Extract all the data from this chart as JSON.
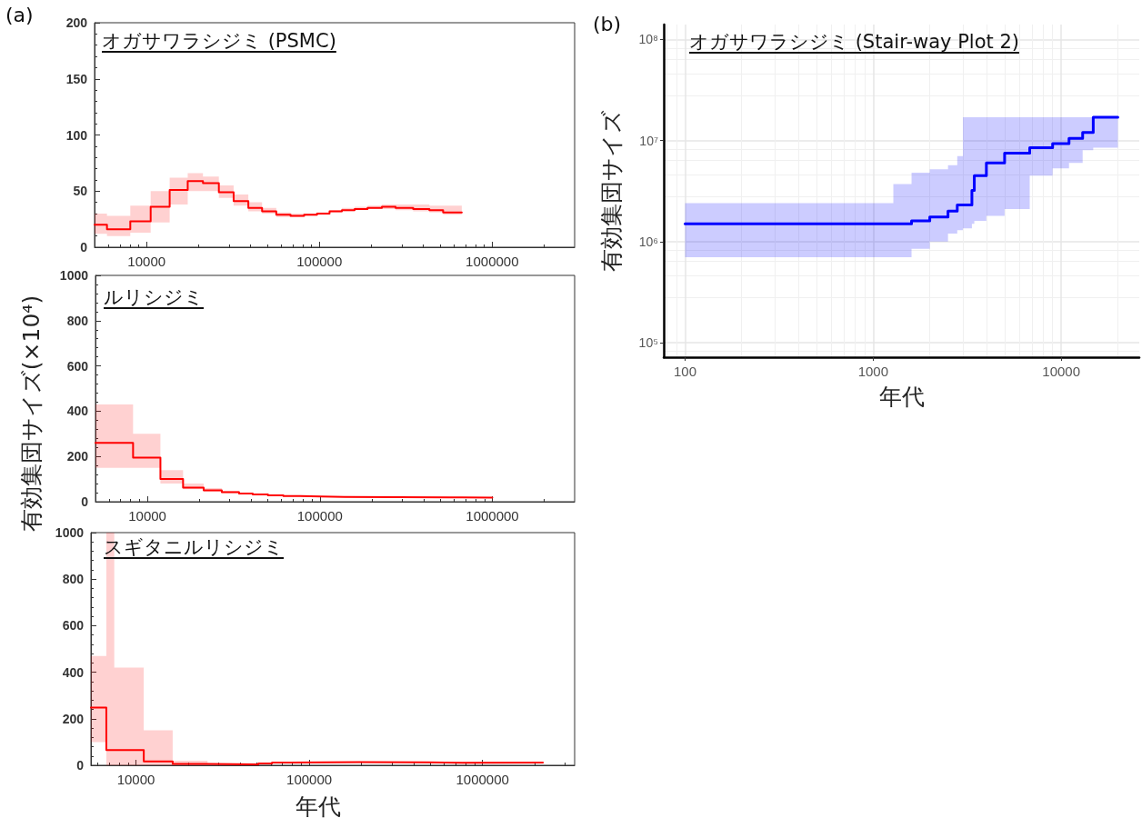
{
  "chart_data": [
    {
      "type": "step",
      "title": "オガサワラシジミ (PSMC)",
      "annotations": [
        "(a)"
      ],
      "log": "x",
      "grid": false,
      "x": [
        5000,
        5900,
        8050,
        10560,
        13600,
        17300,
        21200,
        26200,
        31900,
        38800,
        46600,
        56300,
        68100,
        81600,
        96900,
        114500,
        135000,
        160000,
        190000,
        230000,
        276000,
        349000,
        433000,
        520000,
        667000
      ],
      "series": [
        {
          "color": "#ff0000",
          "values": [
            20,
            16,
            23,
            36,
            51,
            59,
            57,
            49,
            41,
            35,
            32,
            29,
            28,
            29,
            30,
            32,
            33,
            34,
            35,
            36,
            35,
            34,
            33,
            31,
            31
          ],
          "lower": [
            12,
            10,
            13,
            22,
            38,
            50,
            50,
            44,
            37,
            32,
            30,
            27,
            27,
            28,
            29,
            31,
            32,
            33,
            34,
            34,
            33,
            32,
            31,
            29,
            29
          ],
          "upper": [
            30,
            28,
            37,
            50,
            62,
            66,
            63,
            55,
            47,
            40,
            35,
            31,
            30,
            30,
            31,
            33,
            35,
            36,
            37,
            38,
            38,
            38,
            37,
            37,
            37
          ]
        }
      ],
      "xlim": [
        5000,
        3000000
      ],
      "xticks": [
        10000,
        100000,
        1000000
      ],
      "ylim": [
        0,
        200
      ],
      "yticks": [
        0,
        50,
        100,
        150,
        200
      ]
    },
    {
      "type": "step",
      "title": "ルリシジミ",
      "ylabel": "有効集団サイズ(×10⁴)",
      "log": "x",
      "grid": false,
      "x": [
        5000,
        8260,
        11900,
        16100,
        21200,
        27000,
        34000,
        40800,
        50000,
        61400,
        77100,
        101000,
        138000,
        285000,
        562000,
        1000000
      ],
      "series": [
        {
          "color": "#ff0000",
          "values": [
            260,
            195,
            100,
            62,
            50,
            42,
            36,
            32,
            28,
            25,
            23,
            21,
            20,
            19,
            18,
            17
          ],
          "lower": [
            150,
            150,
            80,
            55,
            45,
            38,
            33,
            30,
            26,
            23,
            21,
            20,
            19,
            18,
            17,
            16
          ],
          "upper": [
            430,
            300,
            140,
            80,
            60,
            48,
            40,
            35,
            31,
            28,
            25,
            23,
            22,
            21,
            20,
            19
          ]
        }
      ],
      "xlim": [
        5000,
        3000000
      ],
      "xticks": [
        10000,
        100000,
        1000000
      ],
      "ylim": [
        0,
        1000
      ],
      "yticks": [
        0,
        200,
        400,
        600,
        800,
        1000
      ]
    },
    {
      "type": "step",
      "title": "スギタニルリシジミ",
      "xlabel": "年代",
      "log": "x",
      "grid": false,
      "x": [
        5500,
        6750,
        7500,
        11100,
        16300,
        25900,
        50900,
        61000,
        80100,
        198000,
        490000,
        769000,
        2230000
      ],
      "series": [
        {
          "color": "#ff0000",
          "values": [
            248,
            65,
            65,
            17,
            6,
            4,
            8,
            12,
            14,
            13,
            11,
            12,
            12
          ],
          "lower": [
            100,
            0,
            0,
            0,
            2,
            2,
            5,
            9,
            11,
            10,
            9,
            10,
            10
          ],
          "upper": [
            470,
            1000,
            420,
            150,
            20,
            8,
            12,
            15,
            17,
            16,
            14,
            15,
            15
          ]
        }
      ],
      "xlim": [
        5500,
        3400000
      ],
      "xticks": [
        10000,
        100000,
        1000000
      ],
      "ylim": [
        0,
        1000
      ],
      "yticks": [
        0,
        200,
        400,
        600,
        800,
        1000
      ]
    },
    {
      "type": "step",
      "title": "オガサワラシジミ (Stair-way Plot 2)",
      "annotations": [
        "(b)"
      ],
      "xlabel": "年代",
      "ylabel": "有効集団サイズ",
      "log": "xy",
      "grid": true,
      "x": [
        100,
        1280,
        1600,
        2000,
        2500,
        2800,
        3000,
        3350,
        3450,
        4000,
        5000,
        6800,
        9000,
        11000,
        13000,
        14800,
        20000
      ],
      "series": [
        {
          "color": "#0000ff",
          "values": [
            1500000,
            1500000,
            1600000,
            1750000,
            2000000,
            2300000,
            2300000,
            3200000,
            4500000,
            6000000,
            7500000,
            8500000,
            9300000,
            10500000,
            12000000,
            17000000,
            17000000
          ],
          "lower": [
            700000,
            700000,
            850000,
            1000000,
            1200000,
            1300000,
            1350000,
            1500000,
            1600000,
            1800000,
            2100000,
            4500000,
            5300000,
            6000000,
            8000000,
            8500000,
            10000000
          ],
          "upper": [
            2400000,
            3700000,
            4800000,
            5200000,
            5700000,
            7000000,
            17000000,
            17000000,
            17000000,
            17000000,
            17000000,
            17000000,
            17000000,
            17000000,
            17000000,
            17000000,
            17000000
          ]
        }
      ],
      "xlim": [
        77,
        26000
      ],
      "xticks": [
        100,
        1000,
        10000
      ],
      "ylim": [
        72000,
        140000000
      ],
      "yticks": [
        {
          "value": 100000,
          "label": "10⁵"
        },
        {
          "value": 1000000,
          "label": "10⁶"
        },
        {
          "value": 10000000,
          "label": "10⁷"
        },
        {
          "value": 100000000,
          "label": "10⁸"
        }
      ]
    }
  ]
}
